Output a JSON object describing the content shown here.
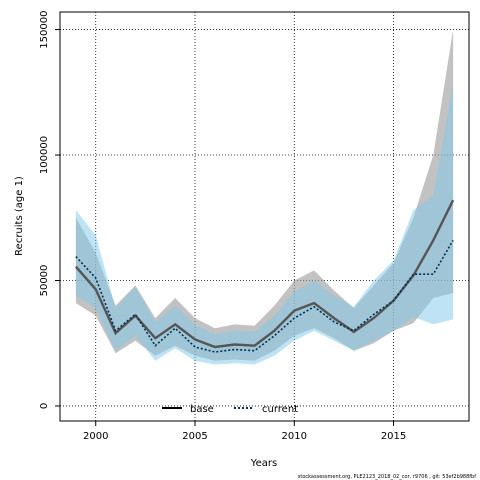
{
  "chart_data": {
    "type": "line",
    "xlabel": "Years",
    "ylabel": "Recruits (age 1)",
    "xlim": [
      1998.2,
      2018.8
    ],
    "ylim": [
      -6000,
      157000
    ],
    "x_ticks": [
      2000,
      2005,
      2010,
      2015
    ],
    "x_tick_labels": [
      "2000",
      "2005",
      "2010",
      "2015"
    ],
    "y_ticks": [
      0,
      50000,
      100000,
      150000
    ],
    "y_tick_labels": [
      "0",
      "50000",
      "100000",
      "150000"
    ],
    "grid": true,
    "legend_position": "bottom-left",
    "x": [
      1999,
      2000,
      2001,
      2002,
      2003,
      2004,
      2005,
      2006,
      2007,
      2008,
      2009,
      2010,
      2011,
      2012,
      2013,
      2014,
      2015,
      2016,
      2017,
      2018
    ],
    "series": [
      {
        "name": "base",
        "color": "#555555",
        "band_color": "#999999",
        "line_style": "solid",
        "values": [
          55500,
          46500,
          29000,
          36000,
          27000,
          32500,
          26500,
          23500,
          24500,
          24000,
          30000,
          38000,
          41000,
          35000,
          29500,
          35000,
          42000,
          52000,
          66000,
          82000
        ],
        "lower": [
          41000,
          36000,
          21000,
          26000,
          20000,
          24000,
          20000,
          18000,
          18500,
          18000,
          22000,
          28000,
          31000,
          27000,
          22000,
          25000,
          30000,
          33000,
          43000,
          45000
        ],
        "upper": [
          75000,
          61000,
          40000,
          48000,
          35000,
          43000,
          35000,
          31000,
          32500,
          32000,
          40000,
          50000,
          54000,
          46000,
          39000,
          48000,
          57000,
          75000,
          100000,
          150000
        ]
      },
      {
        "name": "current",
        "color": "#003050",
        "band_color": "#7ec8ea",
        "line_style": "dotted",
        "values": [
          59500,
          51000,
          30000,
          36500,
          24000,
          31000,
          23500,
          21500,
          22500,
          22000,
          28000,
          35000,
          39500,
          33500,
          30000,
          36500,
          42000,
          52500,
          52500,
          66000
        ],
        "lower": [
          44000,
          39000,
          22000,
          28000,
          18000,
          23000,
          18000,
          16500,
          17000,
          16500,
          20000,
          26000,
          30000,
          26000,
          22000,
          26000,
          30000,
          35500,
          32500,
          34500
        ],
        "upper": [
          78000,
          68000,
          39000,
          47500,
          33500,
          40000,
          32500,
          28500,
          30000,
          29500,
          36000,
          45500,
          50000,
          44000,
          39500,
          50000,
          58000,
          78000,
          84000,
          128000
        ]
      }
    ],
    "footer_text": "stockassessment.org, PLE2123_2018_02_cor, r9706 , git: 53ef2b988fbf"
  }
}
